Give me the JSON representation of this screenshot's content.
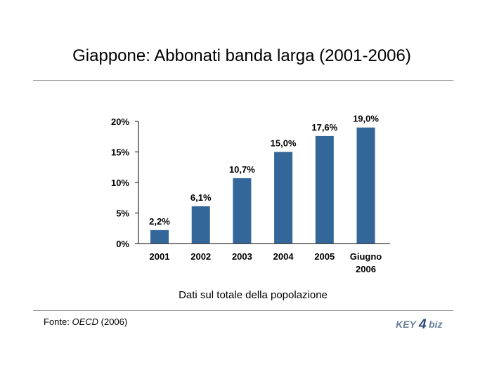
{
  "title": "Giappone: Abbonati banda larga (2001-2006)",
  "subtitle": "Dati sul totale della popolazione",
  "source": {
    "prefix": "Fonte: ",
    "name": "OECD",
    "year": " (2006)"
  },
  "logo": {
    "text": "KEY4biz",
    "part1": "KEY",
    "part2": "4",
    "part3": "biz"
  },
  "colors": {
    "bar": "#336699",
    "axis": "#000000",
    "rule": "#9a9a9a"
  },
  "chart_data": {
    "type": "bar",
    "categories": [
      "2001",
      "2002",
      "2003",
      "2004",
      "2005",
      "Giugno 2006"
    ],
    "category_lines": [
      [
        "2001"
      ],
      [
        "2002"
      ],
      [
        "2003"
      ],
      [
        "2004"
      ],
      [
        "2005"
      ],
      [
        "Giugno",
        "2006"
      ]
    ],
    "values": [
      2.2,
      6.1,
      10.7,
      15.0,
      17.6,
      19.0
    ],
    "data_labels": [
      "2,2%",
      "6,1%",
      "10,7%",
      "15,0%",
      "17,6%",
      "19,0%"
    ],
    "yticks": [
      0,
      5,
      10,
      15,
      20
    ],
    "ytick_labels": [
      "0%",
      "5%",
      "10%",
      "15%",
      "20%"
    ],
    "ylim": [
      0,
      20
    ],
    "grid": false,
    "legend": "none"
  }
}
